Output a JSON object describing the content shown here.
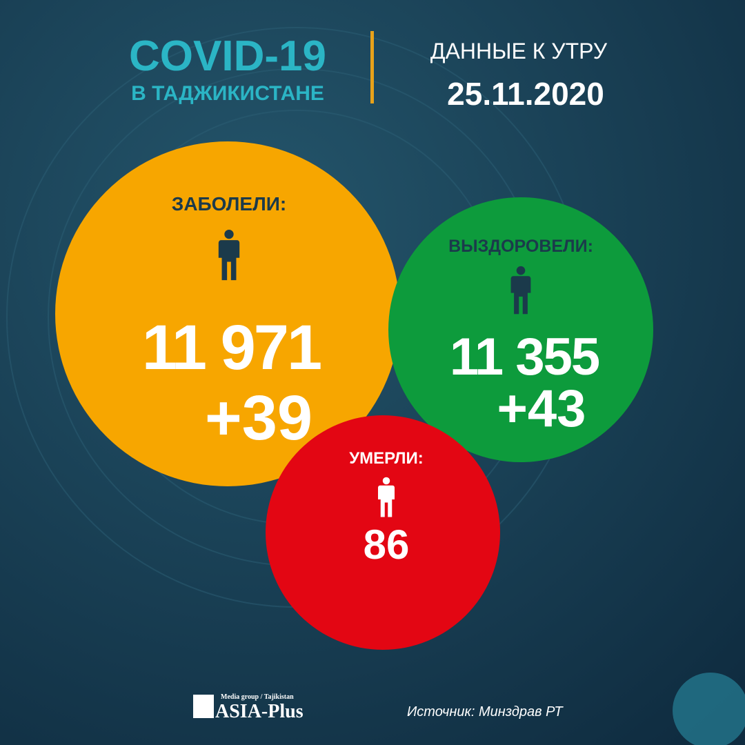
{
  "header": {
    "title": "COVID-19",
    "subtitle": "В ТАДЖИКИСТАНЕ",
    "date_label": "ДАННЫЕ К УТРУ",
    "date": "25.11.2020"
  },
  "stats": [
    {
      "label": "ЗАБОЛЕЛИ:",
      "total": "11 971",
      "change": "+39"
    },
    {
      "label": "ВЫЗДОРОВЕЛИ:",
      "total": "11 355",
      "change": "+43"
    },
    {
      "label": "УМЕРЛИ:",
      "total": "86"
    }
  ],
  "footer": {
    "brand_tagline": "Media group / Tajikistan",
    "brand": "ASIA-Plus",
    "source": "Источник: Минздрав РТ"
  }
}
